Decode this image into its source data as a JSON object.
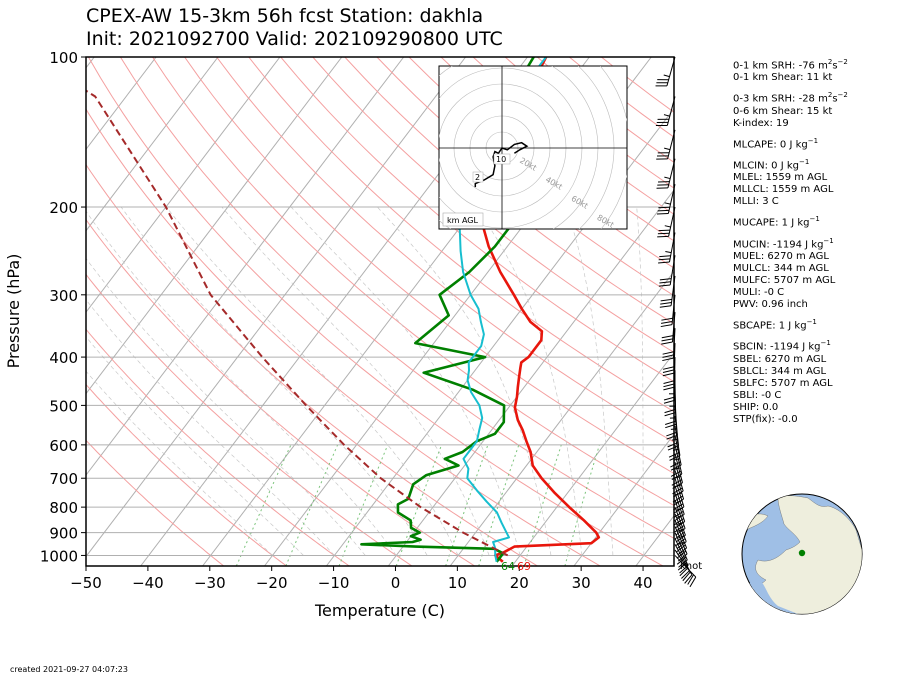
{
  "title": {
    "line1": "CPEX-AW 15-3km  56h fcst  Station: dakhla",
    "line2": "Init: 2021092700  Valid: 202109290800 UTC"
  },
  "created": "created 2021-09-27 04:07:23",
  "chart_data": {
    "type": "line",
    "subtype": "skew-T log-p",
    "xlabel": "Temperature (C)",
    "ylabel": "Pressure (hPa)",
    "xlim": [
      -50,
      45
    ],
    "ylim": [
      1050,
      100
    ],
    "yscale": "log",
    "x_ticks": [
      -50,
      -40,
      -30,
      -20,
      -10,
      0,
      10,
      20,
      30,
      40
    ],
    "x_tick_labels": [
      "−50",
      "−40",
      "−30",
      "−20",
      "−10",
      "0",
      "10",
      "20",
      "30",
      "40"
    ],
    "y_ticks": [
      1000,
      900,
      800,
      700,
      600,
      500,
      400,
      300,
      200,
      100
    ],
    "y_tick_labels": [
      "1000",
      "900",
      "800",
      "700",
      "600",
      "500",
      "400",
      "300",
      "200",
      "100"
    ],
    "surface_labels": {
      "dewpoint": "64",
      "temperature": "69"
    },
    "wind_unit_label": "knot",
    "colors": {
      "temperature": "#e8160c",
      "dewpoint": "#008000",
      "wetbulb": "#17becf",
      "parcel": "#a52a2a",
      "isobar": "#b0b0b0",
      "isotherm": "#b0b0b0",
      "dry_adiabat": "#f4a0a0",
      "mixing_ratio": "#7cc47c"
    },
    "series": [
      {
        "key": "temperature",
        "points": [
          [
            18,
            1030
          ],
          [
            16,
            1000
          ],
          [
            17,
            985
          ],
          [
            18,
            960
          ],
          [
            30,
            945
          ],
          [
            30.5,
            920
          ],
          [
            29.5,
            900
          ],
          [
            26,
            850
          ],
          [
            22,
            800
          ],
          [
            18,
            750
          ],
          [
            14,
            700
          ],
          [
            11,
            660
          ],
          [
            9,
            620
          ],
          [
            7,
            590
          ],
          [
            5,
            560
          ],
          [
            3,
            535
          ],
          [
            1,
            505
          ],
          [
            0,
            480
          ],
          [
            -1,
            460
          ],
          [
            -2,
            440
          ],
          [
            -3,
            420
          ],
          [
            -3.5,
            410
          ],
          [
            -3,
            400
          ],
          [
            -3,
            370
          ],
          [
            -4,
            355
          ],
          [
            -7,
            340
          ],
          [
            -10,
            320
          ],
          [
            -13,
            300
          ],
          [
            -18,
            270
          ],
          [
            -23,
            240
          ],
          [
            -27,
            215
          ],
          [
            -29,
            200
          ],
          [
            -31,
            185
          ],
          [
            -33,
            170
          ],
          [
            -34,
            155
          ],
          [
            -35,
            140
          ],
          [
            -35,
            125
          ],
          [
            -36,
            112
          ],
          [
            -37,
            100
          ]
        ]
      },
      {
        "key": "dewpoint",
        "points": [
          [
            17,
            1030
          ],
          [
            17,
            990
          ],
          [
            15,
            970
          ],
          [
            2,
            960
          ],
          [
            -7,
            950
          ],
          [
            1,
            940
          ],
          [
            2,
            930
          ],
          [
            0,
            915
          ],
          [
            1,
            900
          ],
          [
            -1,
            880
          ],
          [
            -2,
            850
          ],
          [
            -5,
            820
          ],
          [
            -6,
            790
          ],
          [
            -5,
            770
          ],
          [
            -6,
            720
          ],
          [
            -5,
            690
          ],
          [
            -1,
            660
          ],
          [
            -4,
            640
          ],
          [
            -2,
            620
          ],
          [
            -1,
            590
          ],
          [
            1,
            570
          ],
          [
            1,
            540
          ],
          [
            0,
            520
          ],
          [
            -1,
            500
          ],
          [
            -8,
            465
          ],
          [
            -18,
            430
          ],
          [
            -10,
            400
          ],
          [
            -23,
            375
          ],
          [
            -21,
            330
          ],
          [
            -25,
            300
          ],
          [
            -23,
            270
          ],
          [
            -22,
            240
          ],
          [
            -22,
            210
          ],
          [
            -24,
            200
          ],
          [
            -30,
            185
          ],
          [
            -34,
            170
          ],
          [
            -37,
            155
          ],
          [
            -38,
            140
          ],
          [
            -38,
            120
          ],
          [
            -39,
            100
          ]
        ]
      },
      {
        "key": "wetbulb",
        "points": [
          [
            17,
            1030
          ],
          [
            16,
            1000
          ],
          [
            15,
            965
          ],
          [
            14,
            940
          ],
          [
            16,
            920
          ],
          [
            15,
            900
          ],
          [
            13,
            860
          ],
          [
            11,
            820
          ],
          [
            8,
            780
          ],
          [
            5,
            740
          ],
          [
            2,
            700
          ],
          [
            1,
            670
          ],
          [
            -1,
            640
          ],
          [
            -1,
            620
          ],
          [
            -1,
            590
          ],
          [
            -2,
            560
          ],
          [
            -3,
            530
          ],
          [
            -5,
            500
          ],
          [
            -8,
            470
          ],
          [
            -10,
            445
          ],
          [
            -11,
            425
          ],
          [
            -12,
            410
          ],
          [
            -12,
            400
          ],
          [
            -12,
            380
          ],
          [
            -13,
            360
          ],
          [
            -15,
            340
          ],
          [
            -17,
            320
          ],
          [
            -20,
            300
          ],
          [
            -24,
            270
          ],
          [
            -27,
            245
          ],
          [
            -30,
            220
          ],
          [
            -32,
            200
          ],
          [
            -33,
            185
          ],
          [
            -34,
            170
          ],
          [
            -35,
            155
          ],
          [
            -36,
            140
          ],
          [
            -36,
            125
          ],
          [
            -37,
            112
          ],
          [
            -37,
            100
          ]
        ]
      },
      {
        "key": "parcel",
        "style": "dashed",
        "points": [
          [
            18,
            1000
          ],
          [
            8,
            900
          ],
          [
            -2,
            800
          ],
          [
            -12,
            700
          ],
          [
            -22,
            600
          ],
          [
            -33,
            500
          ],
          [
            -46,
            400
          ],
          [
            -62,
            300
          ],
          [
            -80,
            200
          ],
          [
            -105,
            120
          ],
          [
            -120,
            100
          ]
        ]
      }
    ],
    "wind_barbs": [
      [
        -125,
        130,
        1000
      ],
      [
        -110,
        160,
        975
      ],
      [
        -100,
        180,
        950
      ],
      [
        -95,
        195,
        925
      ],
      [
        -90,
        200,
        900
      ],
      [
        -90,
        205,
        875
      ],
      [
        -88,
        210,
        850
      ],
      [
        -85,
        210,
        825
      ],
      [
        -80,
        215,
        800
      ],
      [
        -78,
        218,
        775
      ],
      [
        -75,
        220,
        750
      ],
      [
        -72,
        222,
        725
      ],
      [
        -70,
        225,
        700
      ],
      [
        -68,
        228,
        675
      ],
      [
        -65,
        230,
        650
      ],
      [
        -60,
        232,
        625
      ],
      [
        -55,
        235,
        600
      ],
      [
        -50,
        238,
        575
      ],
      [
        -40,
        240,
        550
      ],
      [
        -30,
        250,
        525
      ],
      [
        -20,
        255,
        500
      ],
      [
        -10,
        260,
        475
      ],
      [
        -5,
        265,
        450
      ],
      [
        0,
        270,
        425
      ],
      [
        5,
        275,
        400
      ],
      [
        10,
        285,
        375
      ],
      [
        15,
        290,
        350
      ],
      [
        25,
        295,
        325
      ],
      [
        30,
        300,
        300
      ],
      [
        40,
        305,
        275
      ],
      [
        50,
        310,
        250
      ],
      [
        60,
        320,
        225
      ],
      [
        70,
        320,
        200
      ],
      [
        75,
        330,
        180
      ],
      [
        80,
        330,
        160
      ],
      [
        85,
        335,
        140
      ],
      [
        90,
        340,
        120
      ],
      [
        95,
        340,
        100
      ]
    ],
    "hodograph": {
      "ring_labels": [
        "20kt",
        "40kt",
        "60kt",
        "80kt"
      ],
      "rings": [
        10,
        20,
        30,
        40,
        50,
        60,
        70,
        80
      ],
      "range_kt": 90,
      "height_labels": [
        "2",
        "10"
      ],
      "legend": "km AGL",
      "trace": [
        [
          -15,
          -22
        ],
        [
          -15,
          -20
        ],
        [
          -10,
          -18
        ],
        [
          -5,
          -15
        ],
        [
          -4,
          -10
        ],
        [
          -5,
          -5
        ],
        [
          -4,
          -2
        ],
        [
          -2,
          -3
        ],
        [
          0,
          0
        ],
        [
          3,
          -1
        ],
        [
          7,
          2
        ],
        [
          11,
          3
        ],
        [
          14,
          1
        ],
        [
          10,
          -1
        ],
        [
          7,
          -3
        ]
      ]
    },
    "indices": [
      {
        "label": "0-1 km SRH: -76 m",
        "sup": "2",
        "mid": "s",
        "sup2": "−2",
        "gap": false
      },
      {
        "label": "0-1 km Shear: 11 kt",
        "gap": false
      },
      {
        "label": "0-3 km SRH: -28 m",
        "sup": "2",
        "mid": "s",
        "sup2": "−2",
        "gap": true
      },
      {
        "label": "0-6 km Shear: 15 kt",
        "gap": false
      },
      {
        "label": "K-index: 19",
        "gap": false
      },
      {
        "label": "MLCAPE: 0 J kg",
        "sup": "−1",
        "gap": true
      },
      {
        "label": "MLCIN: 0 J kg",
        "sup": "−1",
        "gap": true
      },
      {
        "label": "MLEL: 1559 m AGL",
        "gap": false
      },
      {
        "label": "MLLCL: 1559 m AGL",
        "gap": false
      },
      {
        "label": "MLLI: 3 C",
        "gap": false
      },
      {
        "label": "MUCAPE: 1 J kg",
        "sup": "−1",
        "gap": true
      },
      {
        "label": "MUCIN: -1194 J kg",
        "sup": "−1",
        "gap": true
      },
      {
        "label": "MUEL: 6270 m AGL",
        "gap": false
      },
      {
        "label": "MULCL: 344 m AGL",
        "gap": false
      },
      {
        "label": "MULFC: 5707 m AGL",
        "gap": false
      },
      {
        "label": "MULI: -0 C",
        "gap": false
      },
      {
        "label": "PWV: 0.96 inch",
        "gap": false
      },
      {
        "label": "SBCAPE: 1 J kg",
        "sup": "−1",
        "gap": true
      },
      {
        "label": "SBCIN: -1194 J kg",
        "sup": "−1",
        "gap": true
      },
      {
        "label": "SBEL: 6270 m AGL",
        "gap": false
      },
      {
        "label": "SBLCL: 344 m AGL",
        "gap": false
      },
      {
        "label": "SBLFC: 5707 m AGL",
        "gap": false
      },
      {
        "label": "SBLI: -0 C",
        "gap": false
      },
      {
        "label": "SHIP: 0.0",
        "gap": false
      },
      {
        "label": "STP(fix): -0.0",
        "gap": false
      }
    ],
    "globe": {
      "center_lon": -15.9,
      "center_lat": 23.7,
      "station_color": "#008000",
      "ocean_color": "#9fbfe6",
      "land_color": "#eeeedd"
    }
  }
}
